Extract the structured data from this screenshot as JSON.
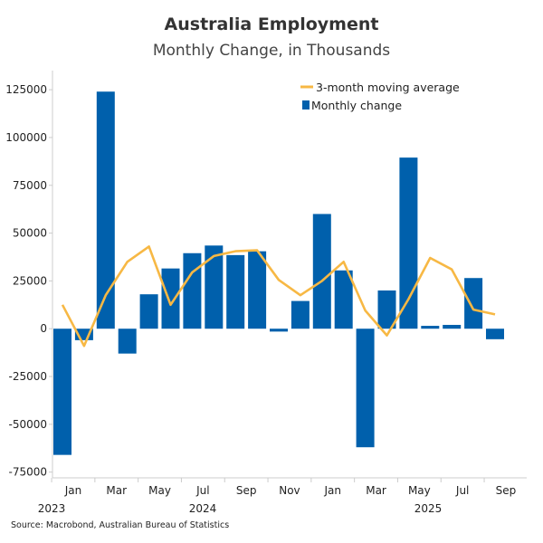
{
  "chart_data": {
    "type": "bar",
    "title": "Australia Employment",
    "subtitle": "Monthly Change, in Thousands",
    "source": "Source: Macrobond, Australian Bureau of Statistics",
    "ylim": [
      -78000,
      135000
    ],
    "y_ticks": [
      125000,
      100000,
      75000,
      50000,
      25000,
      0,
      -25000,
      -50000,
      -75000
    ],
    "x_month_labels": [
      "Jan",
      "Mar",
      "May",
      "Jul",
      "Sep",
      "Nov",
      "Jan",
      "Mar",
      "May",
      "Jul",
      "Sep"
    ],
    "x_year_labels": [
      "2023",
      "2024",
      "2025"
    ],
    "categories": [
      "2023-12",
      "2024-01",
      "2024-02",
      "2024-03",
      "2024-04",
      "2024-05",
      "2024-06",
      "2024-07",
      "2024-08",
      "2024-09",
      "2024-10",
      "2024-11",
      "2024-12",
      "2025-01",
      "2025-02",
      "2025-03",
      "2025-04",
      "2025-05",
      "2025-06",
      "2025-07",
      "2025-08"
    ],
    "legend_position": "top-right",
    "grid": false,
    "series": [
      {
        "name": "Monthly change",
        "type": "bar",
        "color": "#0060ac",
        "values": [
          -66000,
          -6000,
          124000,
          -13000,
          18000,
          31500,
          39500,
          43500,
          38500,
          40500,
          -1500,
          14500,
          60000,
          30500,
          -62000,
          20000,
          89500,
          1500,
          2000,
          26500,
          -5500
        ]
      },
      {
        "name": "3-month moving average",
        "type": "line",
        "color": "#f7b844",
        "values": [
          12500,
          -9000,
          17500,
          35000,
          43000,
          12500,
          29500,
          38000,
          40500,
          41000,
          25500,
          17500,
          25000,
          35000,
          9500,
          -3500,
          15500,
          37000,
          31000,
          10000,
          7500
        ]
      }
    ]
  }
}
